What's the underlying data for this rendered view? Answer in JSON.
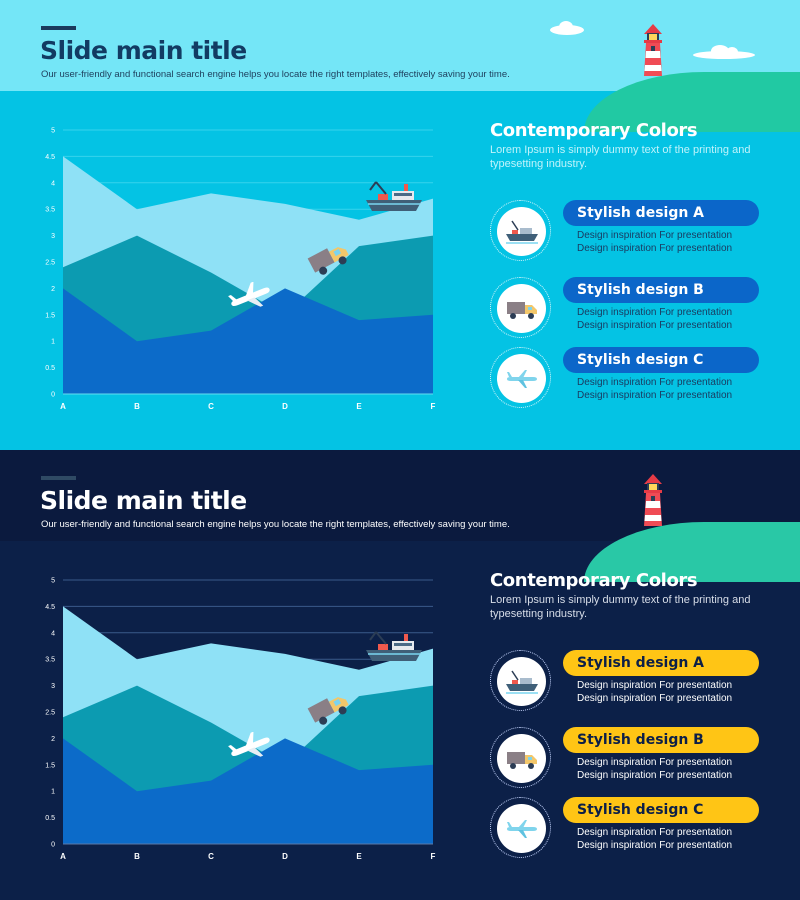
{
  "slides": [
    {
      "theme": "light",
      "title": "Slide main title",
      "subtitle": "Our user-friendly and functional search engine helps you locate the right templates, effectively saving your time.",
      "panel": {
        "title": "Contemporary Colors",
        "description": "Lorem Ipsum is simply dummy text of the printing and typesetting industry.",
        "items": [
          {
            "label": "Stylish design A",
            "line1": "Design inspiration For presentation",
            "line2": "Design inspiration For presentation",
            "icon": "ship-icon"
          },
          {
            "label": "Stylish design B",
            "line1": "Design inspiration For presentation",
            "line2": "Design inspiration For presentation",
            "icon": "truck-icon"
          },
          {
            "label": "Stylish design C",
            "line1": "Design inspiration For presentation",
            "line2": "Design inspiration For presentation",
            "icon": "airplane-icon"
          }
        ]
      },
      "colors": {
        "background": "#04c3e4",
        "header": "#74e6f7",
        "pill": "#0b66c9"
      }
    },
    {
      "theme": "dark",
      "title": "Slide main title",
      "subtitle": "Our user-friendly and functional search engine helps you locate the right templates, effectively saving your time.",
      "panel": {
        "title": "Contemporary Colors",
        "description": "Lorem Ipsum is simply dummy text of the printing and typesetting industry.",
        "items": [
          {
            "label": "Stylish design A",
            "line1": "Design inspiration For presentation",
            "line2": "Design inspiration For presentation",
            "icon": "ship-icon"
          },
          {
            "label": "Stylish design B",
            "line1": "Design inspiration For presentation",
            "line2": "Design inspiration For presentation",
            "icon": "truck-icon"
          },
          {
            "label": "Stylish design C",
            "line1": "Design inspiration For presentation",
            "line2": "Design inspiration For presentation",
            "icon": "airplane-icon"
          }
        ]
      },
      "colors": {
        "background": "#0c2048",
        "header": "#0b1a3e",
        "pill": "#ffc515"
      }
    }
  ],
  "chart_data": [
    {
      "type": "area",
      "categories": [
        "A",
        "B",
        "C",
        "D",
        "E",
        "F"
      ],
      "ylim": [
        0,
        5
      ],
      "yticks": [
        "0",
        "0.5",
        "1",
        "1.5",
        "2",
        "2.5",
        "3",
        "3.5",
        "4",
        "4.5",
        "5"
      ],
      "grid": true,
      "series": [
        {
          "values": [
            4.5,
            3.5,
            3.8,
            3.6,
            3.3,
            3.7
          ],
          "color": "#8fe1f6"
        },
        {
          "values": [
            2.4,
            3.0,
            2.3,
            1.5,
            2.8,
            3.0
          ],
          "color": "#0c9bb1"
        },
        {
          "values": [
            2.0,
            1.0,
            1.2,
            2.0,
            1.4,
            1.5
          ],
          "color": "#0c6bc9"
        }
      ]
    },
    {
      "type": "area",
      "categories": [
        "A",
        "B",
        "C",
        "D",
        "E",
        "F"
      ],
      "ylim": [
        0,
        5
      ],
      "yticks": [
        "0",
        "0.5",
        "1",
        "1.5",
        "2",
        "2.5",
        "3",
        "3.5",
        "4",
        "4.5",
        "5"
      ],
      "grid": true,
      "series": [
        {
          "values": [
            4.5,
            3.5,
            3.8,
            3.6,
            3.3,
            3.7
          ],
          "color": "#8fe1f6"
        },
        {
          "values": [
            2.4,
            3.0,
            2.3,
            1.5,
            2.8,
            3.0
          ],
          "color": "#0c9bb1"
        },
        {
          "values": [
            2.0,
            1.0,
            1.2,
            2.0,
            1.4,
            1.5
          ],
          "color": "#0c6bc9"
        }
      ]
    }
  ]
}
